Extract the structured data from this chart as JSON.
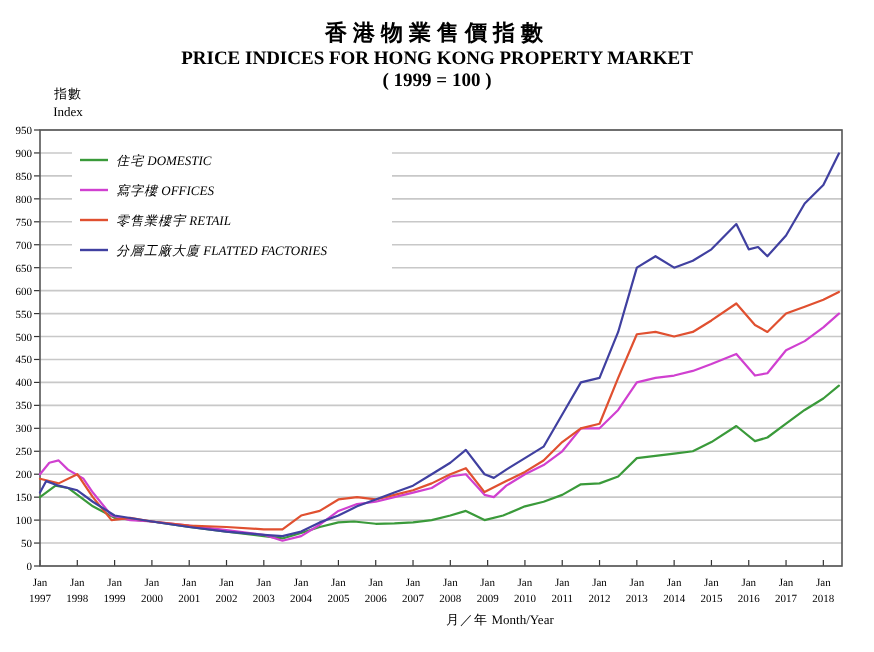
{
  "chart_data": {
    "type": "line",
    "title": "香港物業售價指數",
    "subtitle": "PRICE INDICES FOR HONG KONG PROPERTY MARKET\n( 1999 = 100 )",
    "ylabel": "指數\nIndex",
    "xlabel": "月／年  Month/Year",
    "xlim": [
      "1997-01",
      "2018-07"
    ],
    "ylim": [
      0,
      950
    ],
    "xticks": [
      {
        "value": "1997-01",
        "label": "Jan\n1997"
      },
      {
        "value": "1998-01",
        "label": "Jan\n1998"
      },
      {
        "value": "1999-01",
        "label": "Jan\n1999"
      },
      {
        "value": "2000-01",
        "label": "Jan\n2000"
      },
      {
        "value": "2001-01",
        "label": "Jan\n2001"
      },
      {
        "value": "2002-01",
        "label": "Jan\n2002"
      },
      {
        "value": "2003-01",
        "label": "Jan\n2003"
      },
      {
        "value": "2004-01",
        "label": "Jan\n2004"
      },
      {
        "value": "2005-01",
        "label": "Jan\n2005"
      },
      {
        "value": "2006-01",
        "label": "Jan\n2006"
      },
      {
        "value": "2007-01",
        "label": "Jan\n2007"
      },
      {
        "value": "2008-01",
        "label": "Jan\n2008"
      },
      {
        "value": "2009-01",
        "label": "Jan\n2009"
      },
      {
        "value": "2010-01",
        "label": "Jan\n2010"
      },
      {
        "value": "2011-01",
        "label": "Jan\n2011"
      },
      {
        "value": "2012-01",
        "label": "Jan\n2012"
      },
      {
        "value": "2013-01",
        "label": "Jan\n2013"
      },
      {
        "value": "2014-01",
        "label": "Jan\n2014"
      },
      {
        "value": "2015-01",
        "label": "Jan\n2015"
      },
      {
        "value": "2016-01",
        "label": "Jan\n2016"
      },
      {
        "value": "2017-01",
        "label": "Jan\n2017"
      },
      {
        "value": "2018-01",
        "label": "Jan\n2018"
      }
    ],
    "yticks": [
      0,
      50,
      100,
      150,
      200,
      250,
      300,
      350,
      400,
      450,
      500,
      550,
      600,
      650,
      700,
      750,
      800,
      850,
      900,
      950
    ],
    "grid": "y",
    "legend": "top left",
    "series": [
      {
        "name": "住宅 DOMESTIC",
        "color": "#3a9a3a",
        "x": [
          "1997-01",
          "1997-06",
          "1997-10",
          "1998-06",
          "1999-01",
          "2000-01",
          "2001-01",
          "2002-01",
          "2003-01",
          "2003-07",
          "2004-01",
          "2004-07",
          "2005-01",
          "2005-06",
          "2006-01",
          "2006-07",
          "2007-01",
          "2007-07",
          "2008-01",
          "2008-06",
          "2008-12",
          "2009-06",
          "2010-01",
          "2010-07",
          "2011-01",
          "2011-07",
          "2012-01",
          "2012-07",
          "2013-01",
          "2013-07",
          "2014-01",
          "2014-07",
          "2015-01",
          "2015-09",
          "2016-03",
          "2016-07",
          "2017-01",
          "2017-07",
          "2018-01",
          "2018-06"
        ],
        "values": [
          150,
          175,
          170,
          130,
          105,
          97,
          85,
          75,
          65,
          60,
          72,
          85,
          95,
          97,
          92,
          93,
          95,
          100,
          110,
          120,
          100,
          110,
          130,
          140,
          155,
          178,
          180,
          195,
          235,
          240,
          245,
          250,
          270,
          305,
          272,
          280,
          310,
          340,
          365,
          393
        ]
      },
      {
        "name": "寫字樓 OFFICES",
        "color": "#d040d0",
        "x": [
          "1997-01",
          "1997-04",
          "1997-07",
          "1997-10",
          "1998-03",
          "1998-06",
          "1998-12",
          "1999-06",
          "2000-01",
          "2001-01",
          "2002-01",
          "2003-01",
          "2003-07",
          "2004-01",
          "2004-07",
          "2005-01",
          "2005-07",
          "2006-01",
          "2006-07",
          "2007-01",
          "2007-07",
          "2008-01",
          "2008-06",
          "2008-12",
          "2009-03",
          "2009-07",
          "2010-01",
          "2010-07",
          "2011-01",
          "2011-07",
          "2012-01",
          "2012-07",
          "2013-01",
          "2013-07",
          "2014-01",
          "2014-07",
          "2015-01",
          "2015-09",
          "2016-03",
          "2016-07",
          "2017-01",
          "2017-07",
          "2018-01",
          "2018-06"
        ],
        "values": [
          200,
          225,
          230,
          210,
          190,
          160,
          110,
          100,
          97,
          88,
          78,
          68,
          55,
          65,
          90,
          120,
          135,
          140,
          150,
          160,
          170,
          195,
          200,
          155,
          150,
          175,
          200,
          220,
          250,
          300,
          300,
          340,
          400,
          410,
          415,
          425,
          440,
          462,
          415,
          420,
          470,
          490,
          520,
          550
        ]
      },
      {
        "name": "零售業樓宇 RETAIL",
        "color": "#e05030",
        "x": [
          "1997-01",
          "1997-07",
          "1998-01",
          "1998-06",
          "1998-12",
          "1999-06",
          "2000-01",
          "2001-01",
          "2002-01",
          "2003-01",
          "2003-07",
          "2004-01",
          "2004-07",
          "2005-01",
          "2005-07",
          "2006-01",
          "2006-07",
          "2007-01",
          "2007-07",
          "2008-01",
          "2008-06",
          "2008-12",
          "2009-07",
          "2010-01",
          "2010-07",
          "2011-01",
          "2011-07",
          "2012-01",
          "2012-07",
          "2013-01",
          "2013-07",
          "2014-01",
          "2014-07",
          "2015-01",
          "2015-09",
          "2016-03",
          "2016-07",
          "2017-01",
          "2017-07",
          "2018-01",
          "2018-06"
        ],
        "values": [
          190,
          180,
          200,
          150,
          100,
          105,
          97,
          88,
          85,
          80,
          80,
          110,
          120,
          145,
          150,
          145,
          155,
          165,
          180,
          200,
          213,
          161,
          185,
          205,
          230,
          270,
          300,
          310,
          410,
          505,
          510,
          500,
          510,
          535,
          572,
          525,
          510,
          550,
          565,
          580,
          597
        ]
      },
      {
        "name": "分層工廠大廈 FLATTED FACTORIES",
        "color": "#4040a0",
        "x": [
          "1997-01",
          "1997-03",
          "1997-07",
          "1998-01",
          "1998-06",
          "1999-01",
          "2000-01",
          "2001-01",
          "2002-01",
          "2003-01",
          "2003-07",
          "2004-01",
          "2004-07",
          "2005-01",
          "2005-07",
          "2006-01",
          "2006-07",
          "2007-01",
          "2007-07",
          "2008-01",
          "2008-06",
          "2008-12",
          "2009-03",
          "2009-07",
          "2010-01",
          "2010-07",
          "2011-01",
          "2011-07",
          "2012-01",
          "2012-07",
          "2013-01",
          "2013-07",
          "2014-01",
          "2014-07",
          "2015-01",
          "2015-09",
          "2016-01",
          "2016-04",
          "2016-07",
          "2017-01",
          "2017-07",
          "2018-01",
          "2018-06"
        ],
        "values": [
          160,
          185,
          175,
          165,
          140,
          110,
          97,
          85,
          75,
          68,
          65,
          75,
          95,
          110,
          130,
          145,
          160,
          175,
          200,
          225,
          253,
          200,
          192,
          210,
          235,
          260,
          330,
          400,
          410,
          510,
          650,
          675,
          650,
          665,
          690,
          745,
          690,
          695,
          675,
          720,
          790,
          830,
          899
        ]
      }
    ]
  }
}
